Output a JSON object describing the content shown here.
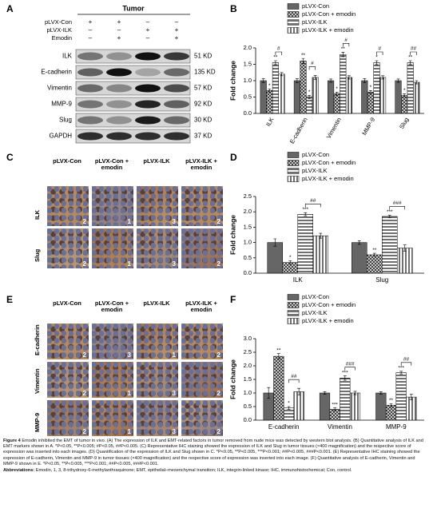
{
  "panel_labels": [
    "A",
    "B",
    "C",
    "D",
    "E",
    "F"
  ],
  "blot": {
    "title": "Tumor",
    "conditions": [
      {
        "name": "pLVX-Con",
        "signs": [
          "+",
          "+",
          "–",
          "–"
        ]
      },
      {
        "name": "pLVX-ILK",
        "signs": [
          "–",
          "–",
          "+",
          "+"
        ]
      },
      {
        "name": "Emodin",
        "signs": [
          "–",
          "+",
          "–",
          "+"
        ]
      }
    ],
    "proteins": [
      {
        "name": "ILK",
        "size": "51 KD"
      },
      {
        "name": "E-cadherin",
        "size": "135 KD"
      },
      {
        "name": "Vimentin",
        "size": "57 KD"
      },
      {
        "name": "MMP-9",
        "size": "92 KD"
      },
      {
        "name": "Slug",
        "size": "30 KD"
      },
      {
        "name": "GAPDH",
        "size": "37 KD"
      }
    ]
  },
  "ihc_c": {
    "columns": [
      "pLVX-Con",
      "pLVX-Con + emodin",
      "pLVX-ILK",
      "pLVX-ILK + emodin"
    ],
    "rows": [
      {
        "name": "ILK",
        "scores": [
          2,
          1,
          3,
          2
        ]
      },
      {
        "name": "Slug",
        "scores": [
          2,
          1,
          3,
          2
        ]
      }
    ]
  },
  "ihc_e": {
    "columns": [
      "pLVX-Con",
      "pLVX-Con + emodin",
      "pLVX-ILK",
      "pLVX-ILK + emodin"
    ],
    "rows": [
      {
        "name": "E-cadherin",
        "scores": [
          2,
          3,
          1,
          2
        ]
      },
      {
        "name": "Vimentin",
        "scores": [
          2,
          1,
          3,
          2
        ]
      },
      {
        "name": "MMP-9",
        "scores": [
          2,
          1,
          3,
          2
        ]
      }
    ]
  },
  "chart_data": [
    {
      "type": "bar",
      "ylabel": "Fold change",
      "legend": "top",
      "categories": [
        "ILK",
        "E-cadherin",
        "Vimentin",
        "MMP-9",
        "Slug"
      ],
      "ylim": [
        0,
        2
      ],
      "yticks": [
        {
          "value": 0,
          "label": "0.0"
        },
        {
          "value": 0.5,
          "label": "0.5"
        },
        {
          "value": 1,
          "label": "1.0"
        },
        {
          "value": 1.5,
          "label": "1.5"
        },
        {
          "value": 2,
          "label": "2.0"
        }
      ],
      "series": [
        {
          "name": "pLVX-Con",
          "color": "#666666",
          "pattern": "solid",
          "values": [
            1.0,
            1.0,
            1.0,
            1.0,
            1.0
          ],
          "errors": [
            0.06,
            0.06,
            0.05,
            0.06,
            0.05
          ]
        },
        {
          "name": "pLVX-Con + emodin",
          "color": "#333333",
          "pattern": "crosshatch",
          "values": [
            0.7,
            1.6,
            0.6,
            0.65,
            0.55
          ],
          "errors": [
            0.05,
            0.08,
            0.05,
            0.05,
            0.05
          ],
          "sig": [
            "*",
            "**",
            "*",
            "*",
            "*"
          ]
        },
        {
          "name": "pLVX-ILK",
          "color": "#333333",
          "pattern": "horizontal",
          "values": [
            1.55,
            0.5,
            1.8,
            1.55,
            1.55
          ],
          "errors": [
            0.06,
            0.05,
            0.07,
            0.06,
            0.06
          ],
          "sig": [
            "**",
            "*",
            "**",
            "*",
            "**"
          ]
        },
        {
          "name": "pLVX-ILK + emodin",
          "color": "#333333",
          "pattern": "vertical",
          "values": [
            1.2,
            1.1,
            1.1,
            1.1,
            0.95
          ],
          "errors": [
            0.05,
            0.06,
            0.05,
            0.05,
            0.05
          ]
        }
      ],
      "brackets": [
        "#",
        "#",
        "#",
        "#",
        "##"
      ]
    },
    {
      "type": "bar",
      "ylabel": "Fold change",
      "legend": "top",
      "categories": [
        "ILK",
        "Slug"
      ],
      "ylim": [
        0,
        2.5
      ],
      "yticks": [
        {
          "value": 0,
          "label": "0.0"
        },
        {
          "value": 0.5,
          "label": "0.5"
        },
        {
          "value": 1,
          "label": "1.0"
        },
        {
          "value": 1.5,
          "label": "1.5"
        },
        {
          "value": 2,
          "label": "2.0"
        },
        {
          "value": 2.5,
          "label": "2.5"
        }
      ],
      "series": [
        {
          "name": "pLVX-Con",
          "color": "#666666",
          "pattern": "solid",
          "values": [
            1.0,
            1.0
          ],
          "errors": [
            0.12,
            0.06
          ]
        },
        {
          "name": "pLVX-Con + emodin",
          "color": "#333333",
          "pattern": "crosshatch",
          "values": [
            0.35,
            0.6
          ],
          "errors": [
            0.06,
            0.05
          ],
          "sig": [
            "*",
            "**"
          ]
        },
        {
          "name": "pLVX-ILK",
          "color": "#333333",
          "pattern": "horizontal",
          "values": [
            1.92,
            1.85
          ],
          "errors": [
            0.05,
            0.04
          ],
          "sig": [
            "***",
            "***"
          ]
        },
        {
          "name": "pLVX-ILK + emodin",
          "color": "#333333",
          "pattern": "vertical",
          "values": [
            1.22,
            0.82
          ],
          "errors": [
            0.08,
            0.1
          ]
        }
      ],
      "brackets": [
        "##",
        "###"
      ]
    },
    {
      "type": "bar",
      "ylabel": "Fold change",
      "legend": "top",
      "categories": [
        "E-cadherin",
        "Vimentin",
        "MMP-9"
      ],
      "ylim": [
        0,
        3
      ],
      "yticks": [
        {
          "value": 0,
          "label": "0.0"
        },
        {
          "value": 0.5,
          "label": "0.5"
        },
        {
          "value": 1,
          "label": "1.0"
        },
        {
          "value": 1.5,
          "label": "1.5"
        },
        {
          "value": 2,
          "label": "2.0"
        },
        {
          "value": 2.5,
          "label": "2.5"
        },
        {
          "value": 3,
          "label": "3.0"
        }
      ],
      "series": [
        {
          "name": "pLVX-Con",
          "color": "#666666",
          "pattern": "solid",
          "values": [
            1.0,
            1.0,
            1.0
          ],
          "errors": [
            0.2,
            0.05,
            0.05
          ]
        },
        {
          "name": "pLVX-Con + emodin",
          "color": "#333333",
          "pattern": "crosshatch",
          "values": [
            2.35,
            0.4,
            0.55
          ],
          "errors": [
            0.1,
            0.05,
            0.06
          ],
          "sig": [
            "**",
            "***",
            "**"
          ]
        },
        {
          "name": "pLVX-ILK",
          "color": "#333333",
          "pattern": "horizontal",
          "values": [
            0.45,
            1.55,
            1.75
          ],
          "errors": [
            0.05,
            0.08,
            0.05
          ],
          "sig": [
            "*",
            "***",
            "***"
          ]
        },
        {
          "name": "pLVX-ILK + emodin",
          "color": "#333333",
          "pattern": "vertical",
          "values": [
            1.05,
            1.0,
            0.85
          ],
          "errors": [
            0.12,
            0.06,
            0.1
          ]
        }
      ],
      "brackets": [
        "##",
        "###",
        "##"
      ]
    }
  ],
  "caption": {
    "label": "Figure 4",
    "text": "Emodin inhibited the EMT of tumor in vivo. (A) The expression of ILK and EMT-related factors in tumor removed from nude mice was detected by western blot analysis. (B) Quantitative analysis of ILK and EMT markers shown in A. *P<0.05, **P<0.005; #P<0.05, ##P<0.005. (C) Representative IHC staining showed the expression of ILK and Slug in tumor tissues (×400 magnification) and the respective score of expression was inserted into each images. (D) Quantification of the expression of ILK and Slug shown in C. *P<0.05, **P<0.005, ***P<0.001; ##P<0.005, ###P<0.001. (E) Representative IHC staining showed the expression of E-cadherin, Vimentin and MMP-9 in tumor tissues (×400 magnification) and the respective score of expression was inserted into each image. (F) Quantitative analysis of E-cadherin, Vimentin and MMP-9 shown in E. *P<0.05, **P<0.005, ***P<0.001; ##P<0.005, ###P<0.001.",
    "abbr_label": "Abbreviations:",
    "abbr_text": "Emodin, 1, 3, 8-trihydroxy-6-methylanthraquinone; EMT, epithelial–mesenchymal transition; ILK, integrin-linked kinase; IHC, immunohistochemical; Con, control."
  }
}
